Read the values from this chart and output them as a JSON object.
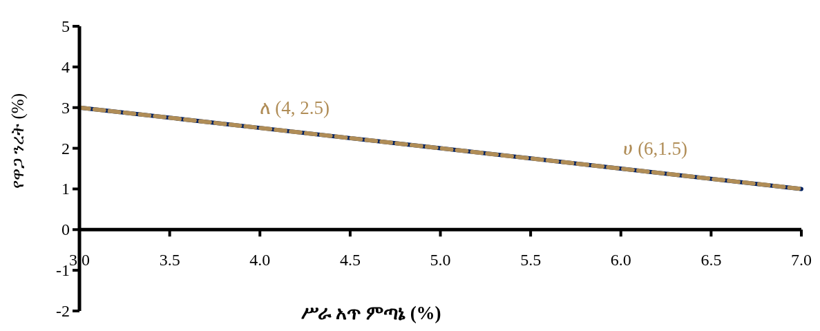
{
  "chart_data": {
    "type": "line",
    "xlabel": "ሥራ አጥ ምጣኔ (%)",
    "ylabel": "የዋጋ ንረት (%)",
    "x": [
      3,
      4,
      5,
      6,
      7
    ],
    "series": [
      {
        "color": "#002060",
        "values": [
          3,
          2.5,
          2,
          1.5,
          1
        ],
        "line_style": "solid"
      },
      {
        "color": "#b08d57",
        "values": [
          3,
          2.5,
          2,
          1.5,
          1
        ],
        "line_style": "dashed"
      }
    ],
    "xlim": [
      3,
      7
    ],
    "ylim": [
      -2,
      5
    ],
    "xticks": [
      {
        "value": 3,
        "label": "3.0"
      },
      {
        "value": 3.5,
        "label": "3.5"
      },
      {
        "value": 4,
        "label": "4.0"
      },
      {
        "value": 4.5,
        "label": "4.5"
      },
      {
        "value": 5,
        "label": "5.0"
      },
      {
        "value": 5.5,
        "label": "5.5"
      },
      {
        "value": 6,
        "label": "6.0"
      },
      {
        "value": 6.5,
        "label": "6.5"
      },
      {
        "value": 7,
        "label": "7.0"
      }
    ],
    "yticks": [
      -2,
      -1,
      0,
      1,
      2,
      3,
      4,
      5
    ],
    "annotations": [
      {
        "text": "ለ (4, 2.5)",
        "x": 4,
        "y": 2.5
      },
      {
        "text": "ሀ (6,1.5)",
        "x": 6,
        "y": 1.5
      }
    ]
  }
}
